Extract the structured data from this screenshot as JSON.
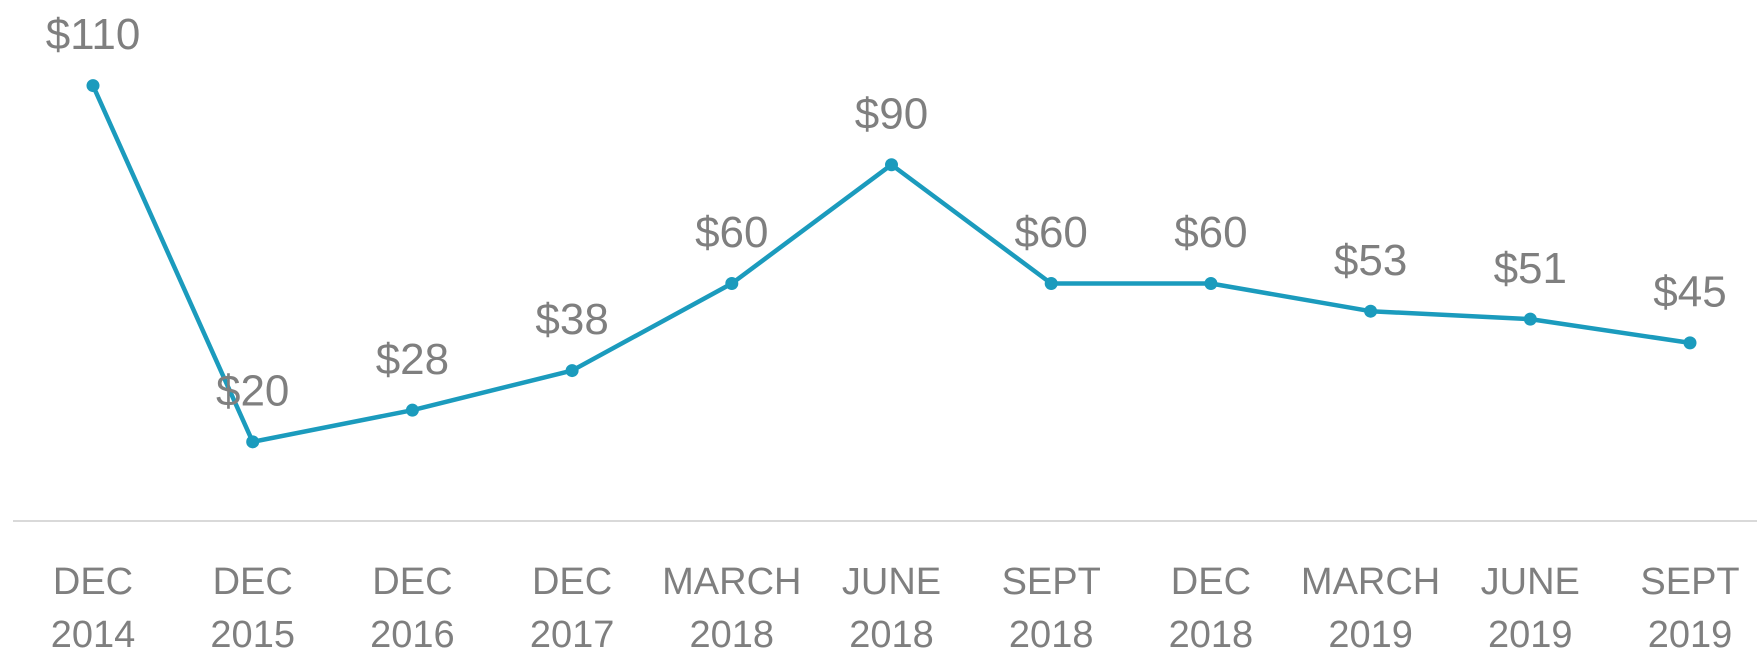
{
  "chart_data": {
    "type": "line",
    "categories": [
      "DEC 2014",
      "DEC 2015",
      "DEC 2016",
      "DEC 2017",
      "MARCH 2018",
      "JUNE 2018",
      "SEPT 2018",
      "DEC 2018",
      "MARCH 2019",
      "JUNE 2019",
      "SEPT 2019"
    ],
    "values": [
      110,
      20,
      28,
      38,
      60,
      90,
      60,
      60,
      53,
      51,
      45
    ],
    "value_labels": [
      "$110",
      "$20",
      "$28",
      "$38",
      "$60",
      "$90",
      "$60",
      "$60",
      "$53",
      "$51",
      "$45"
    ],
    "color": "#1b9bbd",
    "ylim": [
      0,
      120
    ]
  }
}
